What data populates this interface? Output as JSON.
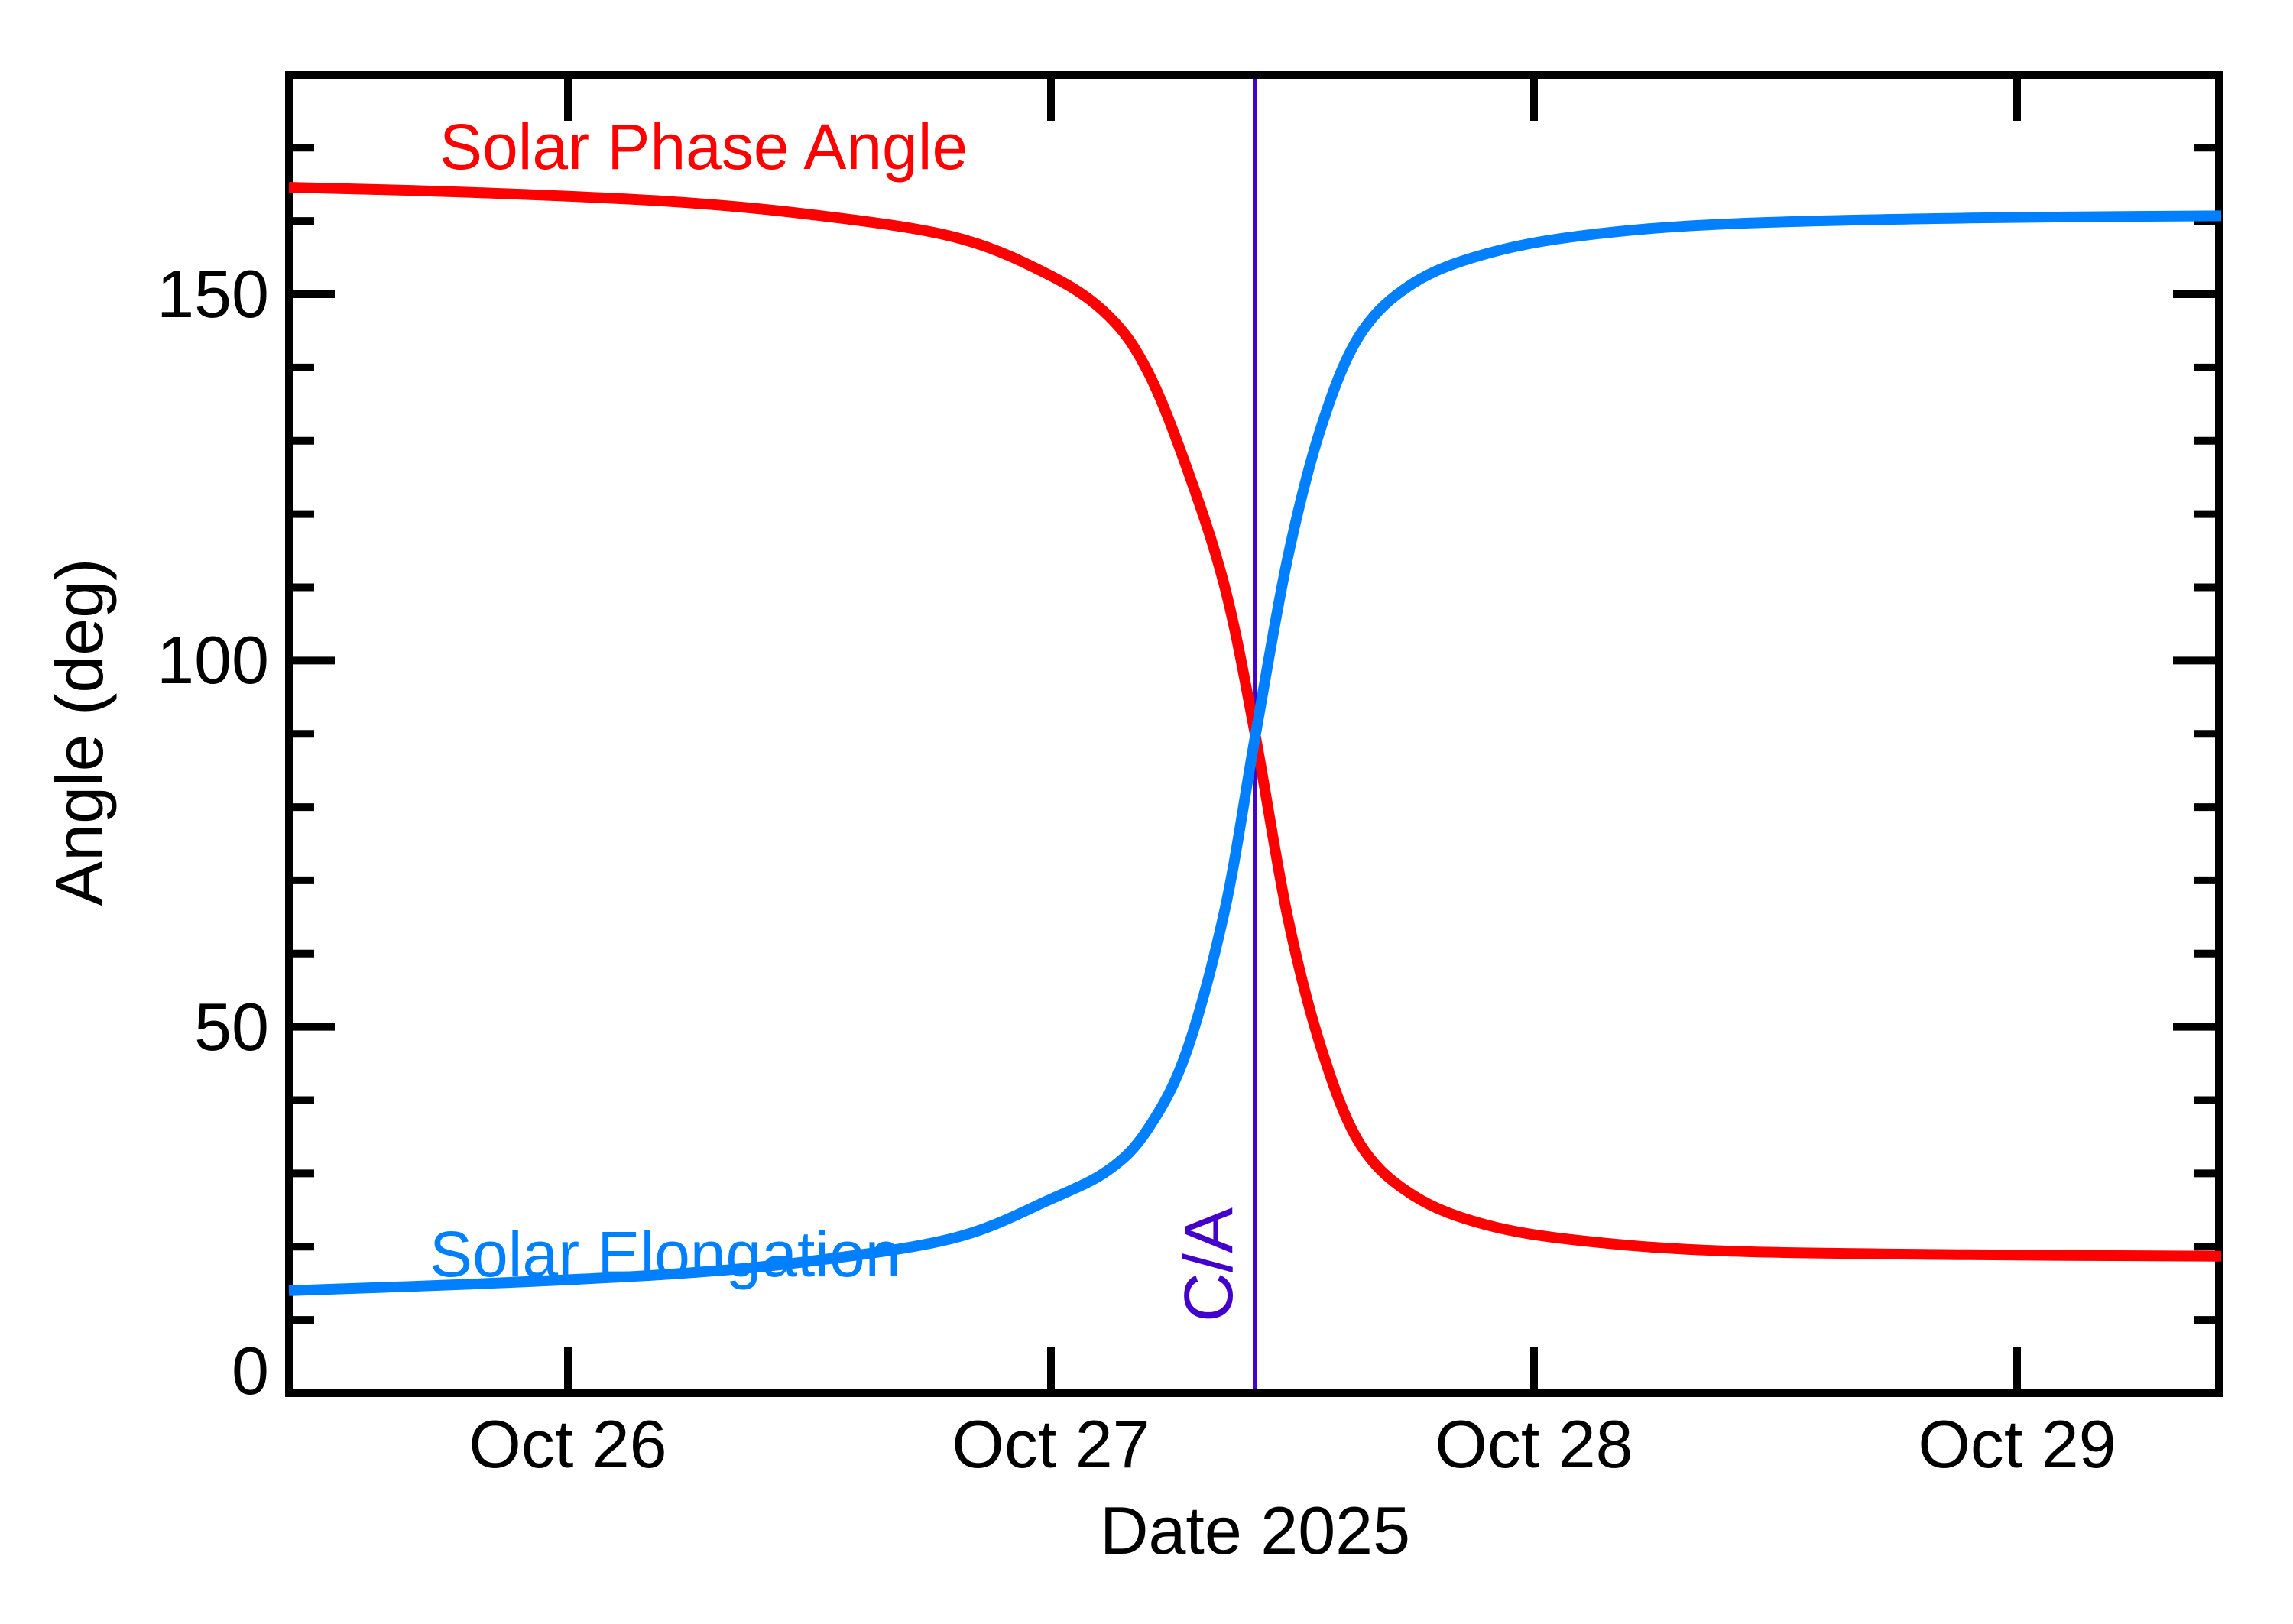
{
  "chart_data": {
    "type": "line",
    "title": "",
    "xlabel": "Date 2025",
    "ylabel": "Angle (deg)",
    "grid": false,
    "legend_position": "inline-curve-labels",
    "x_axis": {
      "unit": "days (Oct 2025, UTC)",
      "tick_labels": [
        "Oct 26",
        "Oct 27",
        "Oct 28",
        "Oct 29"
      ],
      "tick_days": [
        1,
        2,
        3,
        4
      ],
      "range_days": [
        0.4225,
        4.4225
      ]
    },
    "y_axis": {
      "major_ticks": [
        0,
        50,
        100,
        150
      ],
      "major_tick_labels": [
        "0",
        "50",
        "100",
        "150"
      ],
      "minor_tick_step": 10,
      "range": [
        0,
        180
      ]
    },
    "annotation": {
      "label": "C/A",
      "day": 2.4225,
      "color": "#4400CC",
      "meaning_visible_text_only": "C/A"
    },
    "series": [
      {
        "name": "Solar Phase Angle",
        "color": "#FF0000",
        "points_day_deg": [
          [
            0.4225,
            164.6
          ],
          [
            0.8,
            163.9
          ],
          [
            1.2,
            162.7
          ],
          [
            1.5,
            160.9
          ],
          [
            1.8,
            157.8
          ],
          [
            2.0,
            152.5
          ],
          [
            2.12,
            147.0
          ],
          [
            2.2,
            139.5
          ],
          [
            2.28,
            126.5
          ],
          [
            2.36,
            110.0
          ],
          [
            2.4225,
            90.0
          ],
          [
            2.49,
            65.0
          ],
          [
            2.56,
            47.0
          ],
          [
            2.64,
            34.0
          ],
          [
            2.75,
            27.0
          ],
          [
            2.9,
            23.0
          ],
          [
            3.1,
            20.8
          ],
          [
            3.4,
            19.4
          ],
          [
            3.9,
            18.9
          ],
          [
            4.4225,
            18.7
          ]
        ]
      },
      {
        "name": "Solar Elongation",
        "color": "#0080FF",
        "points_day_deg": [
          [
            0.4225,
            14.0
          ],
          [
            0.8,
            14.9
          ],
          [
            1.2,
            16.2
          ],
          [
            1.5,
            18.0
          ],
          [
            1.8,
            21.2
          ],
          [
            2.0,
            26.5
          ],
          [
            2.12,
            30.5
          ],
          [
            2.2,
            36.0
          ],
          [
            2.28,
            46.5
          ],
          [
            2.36,
            66.0
          ],
          [
            2.4225,
            89.5
          ],
          [
            2.49,
            114.0
          ],
          [
            2.56,
            132.0
          ],
          [
            2.64,
            144.5
          ],
          [
            2.75,
            151.5
          ],
          [
            2.9,
            155.5
          ],
          [
            3.1,
            158.0
          ],
          [
            3.4,
            159.6
          ],
          [
            3.9,
            160.4
          ],
          [
            4.4225,
            160.7
          ]
        ]
      }
    ],
    "crossing_point": {
      "day": 2.4225,
      "deg": 90
    }
  },
  "frame_color": "#000000",
  "background_color": "#ffffff"
}
